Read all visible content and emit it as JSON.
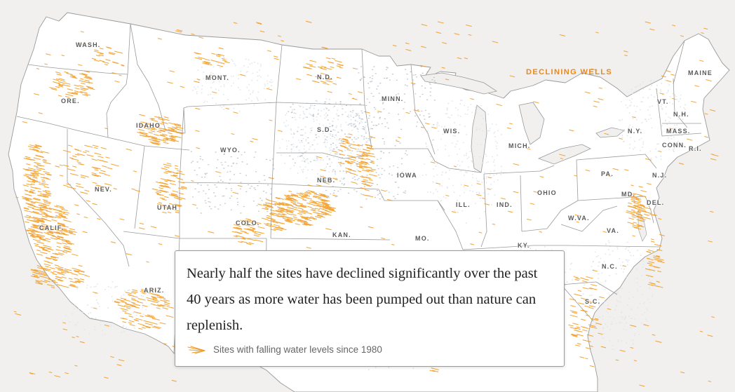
{
  "map": {
    "title": "DECLINING WELLS",
    "colors": {
      "background": "#f1f0ee",
      "land": "#ffffff",
      "border": "#9a9a9a",
      "aquifer": "#dfe6ec",
      "falling_wells": "#f29a1e",
      "stable_wells": "#8a96a4"
    },
    "states": [
      {
        "label": "WASH.",
        "key": "wa"
      },
      {
        "label": "ORE.",
        "key": "or"
      },
      {
        "label": "CALIF.",
        "key": "ca"
      },
      {
        "label": "IDAHO",
        "key": "id"
      },
      {
        "label": "NEV.",
        "key": "nv"
      },
      {
        "label": "UTAH",
        "key": "ut"
      },
      {
        "label": "ARIZ.",
        "key": "az"
      },
      {
        "label": "MONT.",
        "key": "mt"
      },
      {
        "label": "WYO.",
        "key": "wy"
      },
      {
        "label": "COLO.",
        "key": "co"
      },
      {
        "label": "N.D.",
        "key": "nd"
      },
      {
        "label": "S.D.",
        "key": "sd"
      },
      {
        "label": "NEB.",
        "key": "ne"
      },
      {
        "label": "KAN.",
        "key": "ks"
      },
      {
        "label": "MINN.",
        "key": "mn"
      },
      {
        "label": "IOWA",
        "key": "ia"
      },
      {
        "label": "MO.",
        "key": "mo"
      },
      {
        "label": "WIS.",
        "key": "wi"
      },
      {
        "label": "ILL.",
        "key": "il"
      },
      {
        "label": "MICH.",
        "key": "mi"
      },
      {
        "label": "IND.",
        "key": "in"
      },
      {
        "label": "OHIO",
        "key": "oh"
      },
      {
        "label": "KY.",
        "key": "ky"
      },
      {
        "label": "PA.",
        "key": "pa"
      },
      {
        "label": "N.Y.",
        "key": "ny"
      },
      {
        "label": "W.VA.",
        "key": "wv"
      },
      {
        "label": "VA.",
        "key": "va"
      },
      {
        "label": "N.C.",
        "key": "nc"
      },
      {
        "label": "S.C.",
        "key": "sc"
      },
      {
        "label": "MD.",
        "key": "md"
      },
      {
        "label": "DEL.",
        "key": "de"
      },
      {
        "label": "N.J.",
        "key": "nj"
      },
      {
        "label": "CONN.",
        "key": "ct"
      },
      {
        "label": "R.I.",
        "key": "ri"
      },
      {
        "label": "MASS.",
        "key": "ma"
      },
      {
        "label": "VT.",
        "key": "vt"
      },
      {
        "label": "N.H.",
        "key": "nh"
      },
      {
        "label": "MAINE",
        "key": "me"
      }
    ]
  },
  "caption": {
    "text": "Nearly half the sites have declined significantly over the past 40 years as more water has been pumped out than nature can replenish.",
    "legend_label": "Sites with falling water levels since 1980",
    "legend_icon": "falling-arrows-icon"
  }
}
